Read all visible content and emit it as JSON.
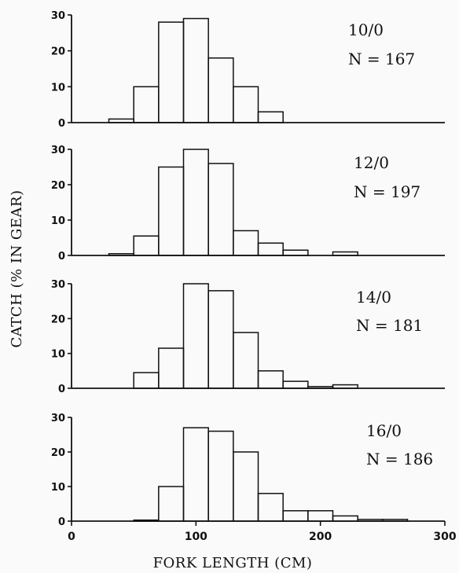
{
  "chart_data": {
    "type": "bar",
    "subtype": "histogram-panels",
    "ylabel": "CATCH (% IN GEAR)",
    "xlabel": "FORK LENGTH (CM)",
    "xlim": [
      0,
      300
    ],
    "xticks": [
      0,
      100,
      200,
      300
    ],
    "ylim": [
      0,
      30
    ],
    "yticks": [
      0,
      10,
      20,
      30
    ],
    "bin_width": 20,
    "bin_starts": [
      30,
      50,
      70,
      90,
      110,
      130,
      150,
      170,
      190,
      210,
      230,
      250
    ],
    "panels": [
      {
        "label": "10/0",
        "n_label": "N = 167",
        "values": [
          1,
          10,
          28,
          29,
          18,
          10,
          3,
          0,
          0,
          0,
          0,
          0
        ]
      },
      {
        "label": "12/0",
        "n_label": "N = 197",
        "values": [
          0.5,
          5.5,
          25,
          30,
          26,
          7,
          3.5,
          1.5,
          0,
          1,
          0,
          0
        ]
      },
      {
        "label": "14/0",
        "n_label": "N = 181",
        "values": [
          0,
          4.5,
          11.5,
          30,
          28,
          16,
          5,
          2,
          0.5,
          1,
          0,
          0
        ]
      },
      {
        "label": "16/0",
        "n_label": "N = 186",
        "values": [
          0,
          0.3,
          10,
          27,
          26,
          20,
          8,
          3,
          3,
          1.5,
          0.5,
          0.5
        ]
      }
    ]
  }
}
